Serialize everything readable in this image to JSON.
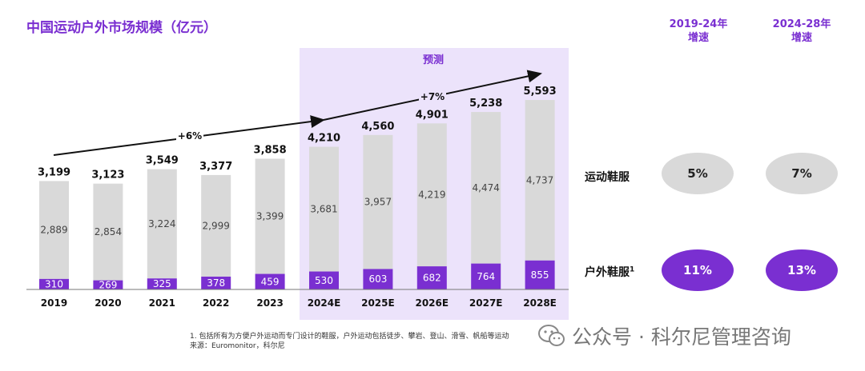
{
  "title": "中国运动户外市场规模（亿元）",
  "forecast_label": "预测",
  "growth_headers": [
    [
      "2019-24年",
      "增速"
    ],
    [
      "2024-28年",
      "增速"
    ]
  ],
  "rows": [
    {
      "label": "运动鞋服",
      "sup": "",
      "values": [
        "5%",
        "7%"
      ],
      "style": "gray"
    },
    {
      "label": "户外鞋服",
      "sup": "1",
      "values": [
        "11%",
        "13%"
      ],
      "style": "purple"
    }
  ],
  "footnote": [
    "1. 包括所有为方便户外运动而专门设计的鞋服，户外运动包括徒步、攀岩、登山、滑雪、帆船等运动",
    "来源：Euromonitor，科尔尼"
  ],
  "watermark": "公众号 · 科尔尼管理咨询",
  "colors": {
    "accent": "#7a2fd1",
    "gray_bar": "#d9d9d9",
    "forecast_bg": "#ece3fb"
  },
  "chart_data": {
    "type": "bar",
    "stacked": true,
    "categories": [
      "2019",
      "2020",
      "2021",
      "2022",
      "2023",
      "2024E",
      "2025E",
      "2026E",
      "2027E",
      "2028E"
    ],
    "series": [
      {
        "values": [
          310,
          269,
          325,
          378,
          459,
          530,
          603,
          682,
          764,
          855
        ]
      },
      {
        "values": [
          2889,
          2854,
          3224,
          2999,
          3399,
          3681,
          3957,
          4219,
          4474,
          4737
        ]
      }
    ],
    "totals": [
      "3,199",
      "3,123",
      "3,549",
      "3,377",
      "3,858",
      "4,210",
      "4,560",
      "4,901",
      "5,238",
      "5,593"
    ],
    "total_values": [
      3199,
      3123,
      3549,
      3377,
      3858,
      4210,
      4560,
      4901,
      5238,
      5593
    ],
    "forecast_start_index": 5,
    "annotations": [
      "+6%",
      "+7%"
    ],
    "ylim": [
      0,
      5593
    ]
  }
}
